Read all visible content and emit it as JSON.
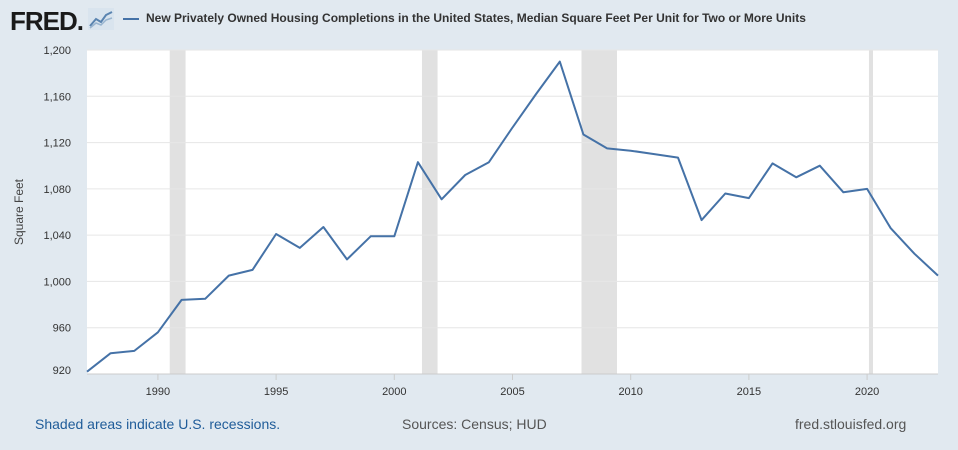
{
  "brand": {
    "name": "FRED",
    "mark": "."
  },
  "legend": {
    "line_color": "#4572a7"
  },
  "footer": {
    "note": "Shaded areas indicate U.S. recessions.",
    "sources": "Sources: Census; HUD",
    "site": "fred.stlouisfed.org"
  },
  "chart_data": {
    "type": "line",
    "title": "New Privately Owned Housing Completions in the United States, Median Square Feet Per Unit for Two or More Units",
    "xlabel": "",
    "ylabel": "Square Feet",
    "xlim": [
      1987,
      2023
    ],
    "ylim": [
      920,
      1200
    ],
    "y_ticks": [
      920,
      960,
      1000,
      1040,
      1080,
      1120,
      1160,
      1200
    ],
    "y_tick_labels": [
      "920",
      "960",
      "1,000",
      "1,040",
      "1,080",
      "1,120",
      "1,160",
      "1,200"
    ],
    "x_ticks": [
      1990,
      1995,
      2000,
      2005,
      2010,
      2015,
      2020
    ],
    "x_tick_labels": [
      "1990",
      "1995",
      "2000",
      "2005",
      "2010",
      "2015",
      "2020"
    ],
    "grid": true,
    "recessions": [
      [
        1990.5,
        1991.17
      ],
      [
        2001.17,
        2001.83
      ],
      [
        2007.92,
        2009.42
      ],
      [
        2020.08,
        2020.25
      ]
    ],
    "series": [
      {
        "name": "Median Square Feet Per Unit, Two or More Units",
        "color": "#4572a7",
        "x": [
          1987,
          1988,
          1989,
          1990,
          1991,
          1992,
          1993,
          1994,
          1995,
          1996,
          1997,
          1998,
          1999,
          2000,
          2001,
          2002,
          2003,
          2004,
          2005,
          2006,
          2007,
          2008,
          2009,
          2010,
          2011,
          2012,
          2013,
          2014,
          2015,
          2016,
          2017,
          2018,
          2019,
          2020,
          2021,
          2022,
          2023
        ],
        "values": [
          922,
          938,
          940,
          956,
          984,
          985,
          1005,
          1010,
          1041,
          1029,
          1047,
          1019,
          1039,
          1039,
          1103,
          1071,
          1092,
          1103,
          1133,
          1162,
          1190,
          1127,
          1115,
          1113,
          1110,
          1107,
          1053,
          1076,
          1072,
          1102,
          1090,
          1100,
          1077,
          1080,
          1046,
          1024,
          1005
        ]
      }
    ]
  }
}
